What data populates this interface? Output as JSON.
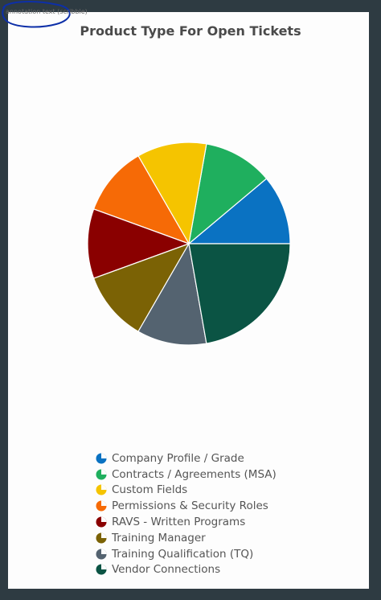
{
  "chart_data": {
    "type": "pie",
    "title": "Product Type For Open Tickets",
    "categories": [
      "Company Profile / Grade",
      "Contracts / Agreements (MSA)",
      "Custom Fields",
      "Permissions & Security Roles",
      "RAVS - Written Programs",
      "Training Manager",
      "Training Qualification (TQ)",
      "Vendor Connections"
    ],
    "values": [
      1,
      1,
      1,
      1,
      1,
      1,
      1,
      2
    ],
    "colors": [
      "#0a72c2",
      "#1faf5e",
      "#f5c400",
      "#f66a06",
      "#8a0000",
      "#7b6205",
      "#546370",
      "#0b5444"
    ],
    "legend_position": "bottom"
  },
  "annotation": {
    "scribble_text": "annotation text (scribble)"
  }
}
